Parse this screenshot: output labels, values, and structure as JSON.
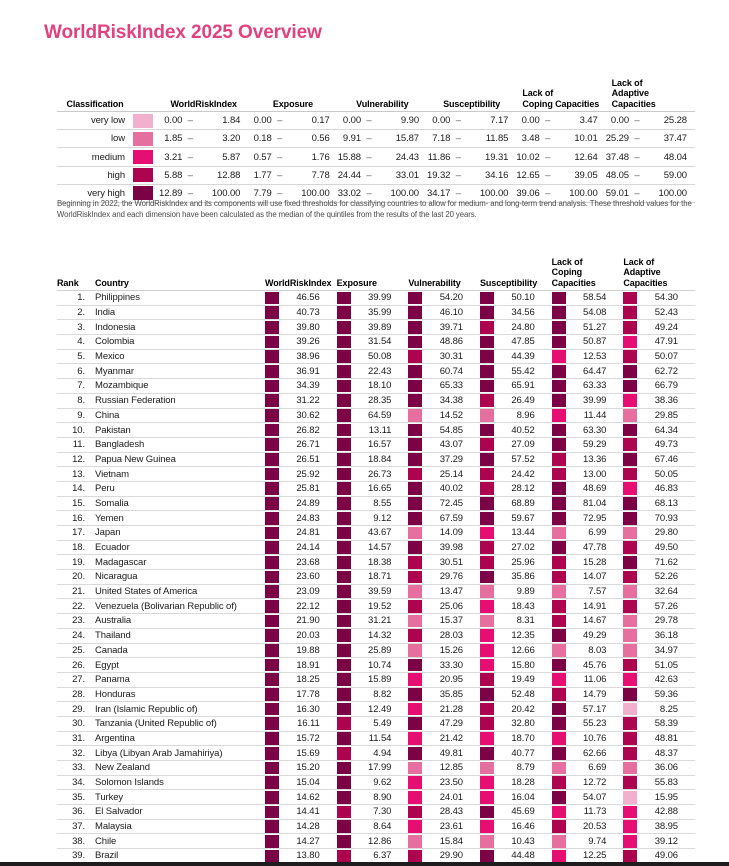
{
  "title": "WorldRiskIndex 2025 Overview",
  "accent_color": "#e2417d",
  "classification": {
    "headers": [
      "Classification",
      "WorldRiskIndex",
      "Exposure",
      "Vulnerability",
      "Susceptibility",
      "Lack of\nCoping Capacities",
      "Lack of\nAdaptive Capacities"
    ],
    "dash": "–",
    "rows": [
      {
        "label": "very low",
        "color": "#f1b0ce",
        "ranges": [
          [
            "0.00",
            "1.84"
          ],
          [
            "0.00",
            "0.17"
          ],
          [
            "0.00",
            "9.90"
          ],
          [
            "0.00",
            "7.17"
          ],
          [
            "0.00",
            "3.47"
          ],
          [
            "0.00",
            "25.28"
          ]
        ]
      },
      {
        "label": "low",
        "color": "#e56f9f",
        "ranges": [
          [
            "1.85",
            "3.20"
          ],
          [
            "0.18",
            "0.56"
          ],
          [
            "9.91",
            "15.87"
          ],
          [
            "7.18",
            "11.85"
          ],
          [
            "3.48",
            "10.01"
          ],
          [
            "25.29",
            "37.47"
          ]
        ]
      },
      {
        "label": "medium",
        "color": "#e60e73",
        "ranges": [
          [
            "3.21",
            "5.87"
          ],
          [
            "0.57",
            "1.76"
          ],
          [
            "15.88",
            "24.43"
          ],
          [
            "11.86",
            "19.31"
          ],
          [
            "10.02",
            "12.64"
          ],
          [
            "37.48",
            "48.04"
          ]
        ]
      },
      {
        "label": "high",
        "color": "#ad0450",
        "ranges": [
          [
            "5.88",
            "12.88"
          ],
          [
            "1.77",
            "7.78"
          ],
          [
            "24.44",
            "33.01"
          ],
          [
            "19.32",
            "34.16"
          ],
          [
            "12.65",
            "39.05"
          ],
          [
            "48.05",
            "59.00"
          ]
        ]
      },
      {
        "label": "very high",
        "color": "#7b0345",
        "ranges": [
          [
            "12.89",
            "100.00"
          ],
          [
            "7.79",
            "100.00"
          ],
          [
            "33.02",
            "100.00"
          ],
          [
            "34.17",
            "100.00"
          ],
          [
            "39.06",
            "100.00"
          ],
          [
            "59.01",
            "100.00"
          ]
        ]
      }
    ],
    "note": "Beginning in 2022, the WorldRiskIndex and its components will use fixed thresholds for classifying countries to allow for medium- and long-term trend analysis. These threshold values for the WorldRiskIndex and each dimension have been calculated as the median of the quintiles from the results of the last 20 years."
  },
  "rankings": {
    "headers": [
      "Rank",
      "Country",
      "WorldRiskIndex",
      "Exposure",
      "Vulnerability",
      "Susceptibility",
      "Lack of\nCoping\nCapacities",
      "Lack of\nAdaptive\nCapacities"
    ],
    "rows": [
      {
        "rank": "1.",
        "country": "Philippines",
        "values": [
          "46.56",
          "39.99",
          "54.20",
          "50.10",
          "58.54",
          "54.30"
        ]
      },
      {
        "rank": "2.",
        "country": "India",
        "values": [
          "40.73",
          "35.99",
          "46.10",
          "34.56",
          "54.08",
          "52.43"
        ]
      },
      {
        "rank": "3.",
        "country": "Indonesia",
        "values": [
          "39.80",
          "39.89",
          "39.71",
          "24.80",
          "51.27",
          "49.24"
        ]
      },
      {
        "rank": "4.",
        "country": "Colombia",
        "values": [
          "39.26",
          "31.54",
          "48.86",
          "47.85",
          "50.87",
          "47.91"
        ]
      },
      {
        "rank": "5.",
        "country": "Mexico",
        "values": [
          "38.96",
          "50.08",
          "30.31",
          "44.39",
          "12.53",
          "50.07"
        ]
      },
      {
        "rank": "6.",
        "country": "Myanmar",
        "values": [
          "36.91",
          "22.43",
          "60.74",
          "55.42",
          "64.47",
          "62.72"
        ]
      },
      {
        "rank": "7.",
        "country": "Mozambique",
        "values": [
          "34.39",
          "18.10",
          "65.33",
          "65.91",
          "63.33",
          "66.79"
        ]
      },
      {
        "rank": "8.",
        "country": "Russian Federation",
        "values": [
          "31.22",
          "28.35",
          "34.38",
          "26.49",
          "39.99",
          "38.36"
        ]
      },
      {
        "rank": "9.",
        "country": "China",
        "values": [
          "30.62",
          "64.59",
          "14.52",
          "8.96",
          "11.44",
          "29.85"
        ]
      },
      {
        "rank": "10.",
        "country": "Pakistan",
        "values": [
          "26.82",
          "13.11",
          "54.85",
          "40.52",
          "63.30",
          "64.34"
        ]
      },
      {
        "rank": "11.",
        "country": "Bangladesh",
        "values": [
          "26.71",
          "16.57",
          "43.07",
          "27.09",
          "59.29",
          "49.73"
        ]
      },
      {
        "rank": "12.",
        "country": "Papua New Guinea",
        "values": [
          "26.51",
          "18.84",
          "37.29",
          "57.52",
          "13.36",
          "67.46"
        ]
      },
      {
        "rank": "13.",
        "country": "Vietnam",
        "values": [
          "25.92",
          "26.73",
          "25.14",
          "24.42",
          "13.00",
          "50.05"
        ]
      },
      {
        "rank": "14.",
        "country": "Peru",
        "values": [
          "25.81",
          "16.65",
          "40.02",
          "28.12",
          "48.69",
          "46.83"
        ]
      },
      {
        "rank": "15.",
        "country": "Somalia",
        "values": [
          "24.89",
          "8.55",
          "72.45",
          "68.89",
          "81.04",
          "68.13"
        ]
      },
      {
        "rank": "16.",
        "country": "Yemen",
        "values": [
          "24.83",
          "9.12",
          "67.59",
          "59.67",
          "72.95",
          "70.93"
        ]
      },
      {
        "rank": "17.",
        "country": "Japan",
        "values": [
          "24.81",
          "43.67",
          "14.09",
          "13.44",
          "6.99",
          "29.80"
        ]
      },
      {
        "rank": "18.",
        "country": "Ecuador",
        "values": [
          "24.14",
          "14.57",
          "39.98",
          "27.02",
          "47.78",
          "49.50"
        ]
      },
      {
        "rank": "19.",
        "country": "Madagascar",
        "values": [
          "23.68",
          "18.38",
          "30.51",
          "25.96",
          "15.28",
          "71.62"
        ]
      },
      {
        "rank": "20.",
        "country": "Nicaragua",
        "values": [
          "23.60",
          "18.71",
          "29.76",
          "35.86",
          "14.07",
          "52.26"
        ]
      },
      {
        "rank": "21.",
        "country": "United States of America",
        "values": [
          "23.09",
          "39.59",
          "13.47",
          "9.89",
          "7.57",
          "32.64"
        ]
      },
      {
        "rank": "22.",
        "country": "Venezuela (Bolivarian Republic of)",
        "values": [
          "22.12",
          "19.52",
          "25.06",
          "18.43",
          "14.91",
          "57.26"
        ]
      },
      {
        "rank": "23.",
        "country": "Australia",
        "values": [
          "21.90",
          "31.21",
          "15.37",
          "8.31",
          "14.67",
          "29.78"
        ]
      },
      {
        "rank": "24.",
        "country": "Thailand",
        "values": [
          "20.03",
          "14.32",
          "28.03",
          "12.35",
          "49.29",
          "36.18"
        ]
      },
      {
        "rank": "25.",
        "country": "Canada",
        "values": [
          "19.88",
          "25.89",
          "15.26",
          "12.66",
          "8.03",
          "34.97"
        ]
      },
      {
        "rank": "26.",
        "country": "Egypt",
        "values": [
          "18.91",
          "10.74",
          "33.30",
          "15.80",
          "45.76",
          "51.05"
        ]
      },
      {
        "rank": "27.",
        "country": "Panama",
        "values": [
          "18.25",
          "15.89",
          "20.95",
          "19.49",
          "11.06",
          "42.63"
        ]
      },
      {
        "rank": "28.",
        "country": "Honduras",
        "values": [
          "17.78",
          "8.82",
          "35.85",
          "52.48",
          "14.79",
          "59.36"
        ]
      },
      {
        "rank": "29.",
        "country": "Iran (Islamic Republic of)",
        "values": [
          "16.30",
          "12.49",
          "21.28",
          "20.42",
          "57.17",
          "8.25"
        ]
      },
      {
        "rank": "30.",
        "country": "Tanzania (United Republic of)",
        "values": [
          "16.11",
          "5.49",
          "47.29",
          "32.80",
          "55.23",
          "58.39"
        ]
      },
      {
        "rank": "31.",
        "country": "Argentina",
        "values": [
          "15.72",
          "11.54",
          "21.42",
          "18.70",
          "10.76",
          "48.81"
        ]
      },
      {
        "rank": "32.",
        "country": "Libya (Libyan Arab Jamahiriya)",
        "values": [
          "15.69",
          "4.94",
          "49.81",
          "40.77",
          "62.66",
          "48.37"
        ]
      },
      {
        "rank": "33.",
        "country": "New Zealand",
        "values": [
          "15.20",
          "17.99",
          "12.85",
          "8.79",
          "6.69",
          "36.06"
        ]
      },
      {
        "rank": "34.",
        "country": "Solomon Islands",
        "values": [
          "15.04",
          "9.62",
          "23.50",
          "18.28",
          "12.72",
          "55.83"
        ]
      },
      {
        "rank": "35.",
        "country": "Turkey",
        "values": [
          "14.62",
          "8.90",
          "24.01",
          "16.04",
          "54.07",
          "15.95"
        ]
      },
      {
        "rank": "36.",
        "country": "El Salvador",
        "values": [
          "14.41",
          "7.30",
          "28.43",
          "45.69",
          "11.73",
          "42.88"
        ]
      },
      {
        "rank": "37.",
        "country": "Malaysia",
        "values": [
          "14.28",
          "8.64",
          "23.61",
          "16.46",
          "20.53",
          "38.95"
        ]
      },
      {
        "rank": "38.",
        "country": "Chile",
        "values": [
          "14.27",
          "12.86",
          "15.84",
          "10.43",
          "9.74",
          "39.12"
        ]
      },
      {
        "rank": "39.",
        "country": "Brazil",
        "values": [
          "13.80",
          "6.37",
          "29.90",
          "44.48",
          "12.25",
          "49.06"
        ]
      }
    ]
  }
}
